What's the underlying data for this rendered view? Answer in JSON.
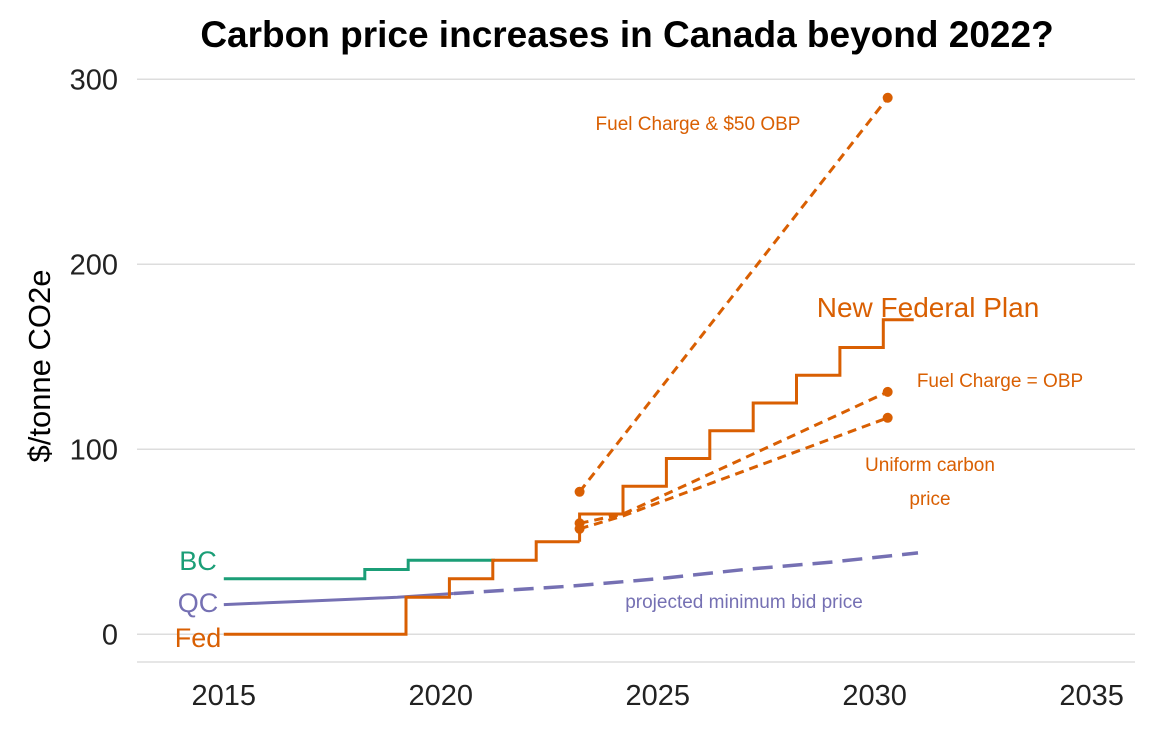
{
  "chart_data": {
    "type": "line",
    "title": "Carbon price increases in Canada beyond 2022?",
    "xlabel": "",
    "ylabel": "$/tonne CO2e",
    "xlim": [
      2013,
      2036
    ],
    "ylim": [
      -15,
      305
    ],
    "x_ticks": [
      2015,
      2020,
      2025,
      2030,
      2035
    ],
    "y_ticks": [
      0,
      100,
      200,
      300
    ],
    "grid": "horizontal",
    "series": [
      {
        "name": "BC",
        "label": "BC",
        "style": "solid",
        "color": "#1b9e77",
        "points": [
          [
            2015,
            30
          ],
          [
            2018.25,
            30
          ],
          [
            2018.25,
            35
          ],
          [
            2019.25,
            35
          ],
          [
            2019.25,
            40
          ],
          [
            2021.25,
            40
          ]
        ]
      },
      {
        "name": "QC",
        "label": "QC",
        "style": "solid",
        "color": "#7570b3",
        "points": [
          [
            2015,
            16
          ],
          [
            2016,
            17
          ],
          [
            2017,
            18
          ],
          [
            2018,
            19
          ],
          [
            2019,
            20
          ],
          [
            2020.3,
            22
          ]
        ]
      },
      {
        "name": "projected minimum bid price",
        "label": "projected minimum bid price",
        "style": "dashed",
        "color": "#7570b3",
        "points": [
          [
            2020.3,
            22
          ],
          [
            2023,
            26
          ],
          [
            2025,
            30
          ],
          [
            2027,
            35
          ],
          [
            2029,
            39
          ],
          [
            2031,
            44
          ]
        ]
      },
      {
        "name": "Fed",
        "label": "Fed",
        "style": "solid",
        "color": "#d95f02",
        "points": [
          [
            2015,
            0
          ],
          [
            2019.2,
            0
          ],
          [
            2019.2,
            20
          ],
          [
            2020.2,
            20
          ],
          [
            2020.2,
            30
          ],
          [
            2021.2,
            30
          ],
          [
            2021.2,
            40
          ],
          [
            2022.2,
            40
          ],
          [
            2022.2,
            50
          ],
          [
            2023.2,
            50
          ]
        ]
      },
      {
        "name": "New Federal Plan",
        "label": "New Federal Plan",
        "style": "solid",
        "color": "#d95f02",
        "points": [
          [
            2023.2,
            50
          ],
          [
            2023.2,
            65
          ],
          [
            2024.2,
            65
          ],
          [
            2024.2,
            80
          ],
          [
            2025.2,
            80
          ],
          [
            2025.2,
            95
          ],
          [
            2026.2,
            95
          ],
          [
            2026.2,
            110
          ],
          [
            2027.2,
            110
          ],
          [
            2027.2,
            125
          ],
          [
            2028.2,
            125
          ],
          [
            2028.2,
            140
          ],
          [
            2029.2,
            140
          ],
          [
            2029.2,
            155
          ],
          [
            2030.2,
            155
          ],
          [
            2030.2,
            170
          ],
          [
            2030.9,
            170
          ]
        ]
      },
      {
        "name": "Fuel Charge & $50 OBP",
        "label": "Fuel Charge & $50 OBP",
        "style": "dashed",
        "color": "#d95f02",
        "points": [
          [
            2023.2,
            77
          ],
          [
            2030.3,
            290
          ]
        ]
      },
      {
        "name": "Fuel Charge = OBP",
        "label": "Fuel Charge = OBP",
        "style": "dashed",
        "color": "#d95f02",
        "points": [
          [
            2023.2,
            60
          ],
          [
            2024.2,
            65
          ],
          [
            2030.3,
            131
          ]
        ]
      },
      {
        "name": "Uniform carbon price",
        "label_lines": [
          "Uniform carbon",
          "price"
        ],
        "style": "dashed",
        "color": "#d95f02",
        "points": [
          [
            2023.2,
            57
          ],
          [
            2024.2,
            64
          ],
          [
            2030.3,
            117
          ]
        ]
      }
    ],
    "markers": [
      {
        "x": 2023.2,
        "y": 77,
        "color": "#d95f02"
      },
      {
        "x": 2023.2,
        "y": 60,
        "color": "#d95f02"
      },
      {
        "x": 2023.2,
        "y": 57,
        "color": "#d95f02"
      },
      {
        "x": 2030.3,
        "y": 290,
        "color": "#d95f02"
      },
      {
        "x": 2030.3,
        "y": 131,
        "color": "#d95f02"
      },
      {
        "x": 2030.3,
        "y": 117,
        "color": "#d95f02"
      }
    ]
  }
}
